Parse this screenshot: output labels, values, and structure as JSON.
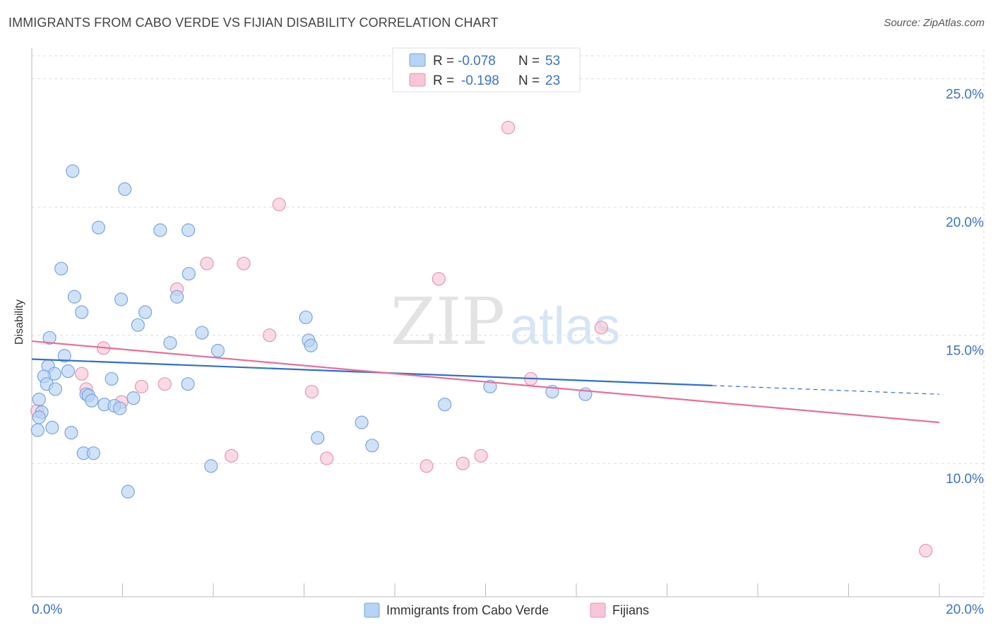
{
  "title": "IMMIGRANTS FROM CABO VERDE VS FIJIAN DISABILITY CORRELATION CHART",
  "source": "Source: ZipAtlas.com",
  "watermark": {
    "zip": "ZIP",
    "atlas": "atlas"
  },
  "legend_box": [
    {
      "r_label": "R =",
      "r_value": "-0.078",
      "n_label": "N =",
      "n_value": "53"
    },
    {
      "r_label": "R =",
      "r_value": "-0.198",
      "n_label": "N =",
      "n_value": "23"
    }
  ],
  "colors": {
    "blue_fill": "#b7d3f5",
    "blue_stroke": "#7aa6df",
    "blue_line": "#2f6fcc",
    "pink_fill": "#f8c6d6",
    "pink_stroke": "#e896b2",
    "pink_line": "#e8709a",
    "value_text": "#3a73c7",
    "grid": "#dddddd"
  },
  "chart_data": {
    "type": "scatter",
    "title": "IMMIGRANTS FROM CABO VERDE VS FIJIAN DISABILITY CORRELATION CHART",
    "xlabel": "",
    "ylabel": "Disability",
    "xlim": [
      0,
      20
    ],
    "ylim": [
      4.8,
      25.9
    ],
    "x_tick_labels": [
      "0.0%",
      "20.0%"
    ],
    "y_ticks": [
      10,
      15,
      20,
      25
    ],
    "y_tick_labels": [
      "10.0%",
      "15.0%",
      "20.0%",
      "25.0%"
    ],
    "legend_position": "bottom-center",
    "series": [
      {
        "name": "Immigrants from Cabo Verde",
        "color": "blue",
        "r": -0.078,
        "n": 53,
        "trend": {
          "x0": 0,
          "y0": 14.07,
          "x1": 15.0,
          "y1": 13.04,
          "dash_to_x": 20.0,
          "dash_to_y": 12.7
        },
        "points": [
          [
            0.9,
            21.4
          ],
          [
            2.05,
            20.7
          ],
          [
            1.47,
            19.2
          ],
          [
            2.83,
            19.1
          ],
          [
            3.45,
            19.1
          ],
          [
            0.65,
            17.6
          ],
          [
            3.46,
            17.4
          ],
          [
            0.94,
            16.5
          ],
          [
            3.2,
            16.5
          ],
          [
            1.97,
            16.4
          ],
          [
            1.1,
            15.9
          ],
          [
            2.5,
            15.9
          ],
          [
            2.34,
            15.4
          ],
          [
            6.04,
            15.7
          ],
          [
            3.75,
            15.1
          ],
          [
            0.39,
            14.9
          ],
          [
            3.05,
            14.7
          ],
          [
            6.1,
            14.8
          ],
          [
            6.15,
            14.6
          ],
          [
            4.1,
            14.4
          ],
          [
            0.72,
            14.2
          ],
          [
            0.36,
            13.8
          ],
          [
            0.5,
            13.5
          ],
          [
            0.8,
            13.6
          ],
          [
            0.27,
            13.4
          ],
          [
            0.33,
            13.1
          ],
          [
            1.76,
            13.3
          ],
          [
            3.44,
            13.1
          ],
          [
            0.52,
            12.9
          ],
          [
            1.2,
            12.7
          ],
          [
            1.25,
            12.65
          ],
          [
            1.32,
            12.45
          ],
          [
            1.6,
            12.3
          ],
          [
            1.82,
            12.25
          ],
          [
            1.94,
            12.15
          ],
          [
            2.24,
            12.55
          ],
          [
            0.16,
            12.5
          ],
          [
            9.1,
            12.3
          ],
          [
            0.22,
            12.0
          ],
          [
            0.16,
            11.8
          ],
          [
            0.13,
            11.3
          ],
          [
            0.45,
            11.4
          ],
          [
            0.87,
            11.2
          ],
          [
            7.27,
            11.6
          ],
          [
            6.3,
            11.0
          ],
          [
            7.5,
            10.7
          ],
          [
            1.14,
            10.4
          ],
          [
            1.36,
            10.4
          ],
          [
            3.95,
            9.9
          ],
          [
            2.12,
            8.9
          ],
          [
            10.1,
            13.0
          ],
          [
            11.47,
            12.8
          ],
          [
            12.2,
            12.7
          ]
        ]
      },
      {
        "name": "Fijians",
        "color": "pink",
        "r": -0.198,
        "n": 23,
        "trend": {
          "x0": 0,
          "y0": 14.77,
          "x1": 20.0,
          "y1": 11.6
        },
        "points": [
          [
            10.5,
            23.1
          ],
          [
            5.45,
            20.1
          ],
          [
            3.86,
            17.8
          ],
          [
            4.67,
            17.8
          ],
          [
            8.97,
            17.2
          ],
          [
            3.2,
            16.8
          ],
          [
            12.55,
            15.3
          ],
          [
            5.24,
            15.0
          ],
          [
            1.58,
            14.5
          ],
          [
            1.1,
            13.5
          ],
          [
            11.0,
            13.3
          ],
          [
            1.2,
            12.9
          ],
          [
            2.42,
            13.0
          ],
          [
            2.93,
            13.1
          ],
          [
            6.17,
            12.8
          ],
          [
            1.98,
            12.4
          ],
          [
            0.12,
            12.05
          ],
          [
            4.4,
            10.3
          ],
          [
            6.5,
            10.2
          ],
          [
            8.7,
            9.9
          ],
          [
            9.5,
            10.0
          ],
          [
            9.9,
            10.3
          ],
          [
            19.7,
            6.6
          ]
        ]
      }
    ]
  }
}
